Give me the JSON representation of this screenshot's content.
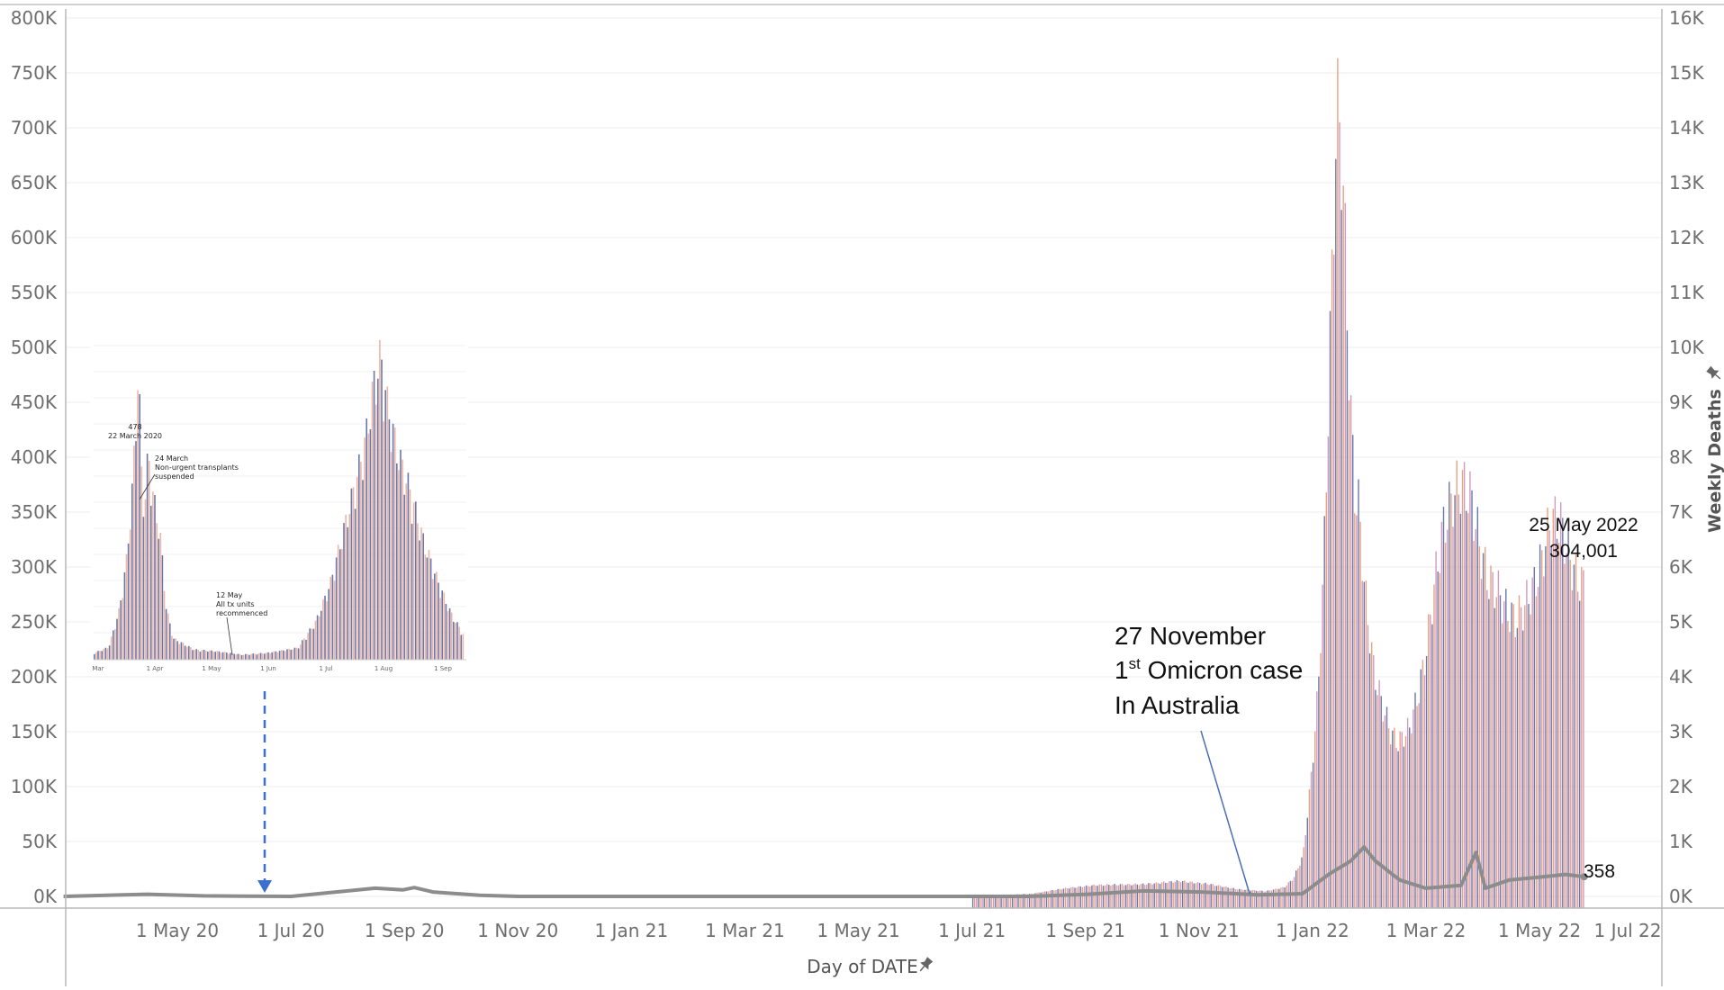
{
  "chart_data": {
    "type": "bar",
    "x_axis": {
      "title": "Day of DATE",
      "ticks": [
        "1 May 20",
        "1 Jul 20",
        "1 Sep 20",
        "1 Nov 20",
        "1 Jan 21",
        "1 Mar 21",
        "1 May 21",
        "1 Jul 21",
        "1 Sep 21",
        "1 Nov 21",
        "1 Jan 22",
        "1 Mar 22",
        "1 May 22",
        "1 Jul 22"
      ]
    },
    "y_left": {
      "range": [
        0,
        800000
      ],
      "ticks": [
        "800K",
        "750K",
        "700K",
        "650K",
        "600K",
        "550K",
        "500K",
        "450K",
        "400K",
        "350K",
        "300K",
        "250K",
        "200K",
        "150K",
        "100K",
        "50K",
        "0K"
      ]
    },
    "y_right": {
      "title": "Weekly Deaths",
      "range": [
        0,
        16000
      ],
      "ticks": [
        "16K",
        "15K",
        "14K",
        "13K",
        "12K",
        "11K",
        "10K",
        "9K",
        "8K",
        "7K",
        "6K",
        "5K",
        "4K",
        "3K",
        "2K",
        "1K",
        "0K"
      ]
    },
    "bars_series": {
      "axis": "left",
      "points": [
        [
          "2021-07-01",
          500
        ],
        [
          "2021-08-01",
          2500
        ],
        [
          "2021-08-20",
          8000
        ],
        [
          "2021-09-05",
          11000
        ],
        [
          "2021-10-01",
          12000
        ],
        [
          "2021-10-20",
          15000
        ],
        [
          "2021-11-05",
          12000
        ],
        [
          "2021-11-20",
          7000
        ],
        [
          "2021-12-05",
          5000
        ],
        [
          "2021-12-15",
          9000
        ],
        [
          "2021-12-20",
          18000
        ],
        [
          "2021-12-25",
          40000
        ],
        [
          "2021-12-29",
          110000
        ],
        [
          "2022-01-02",
          200000
        ],
        [
          "2022-01-05",
          320000
        ],
        [
          "2022-01-08",
          510000
        ],
        [
          "2022-01-10",
          640000
        ],
        [
          "2022-01-12",
          770000
        ],
        [
          "2022-01-14",
          750000
        ],
        [
          "2022-01-16",
          670000
        ],
        [
          "2022-01-18",
          550000
        ],
        [
          "2022-01-20",
          450000
        ],
        [
          "2022-01-22",
          390000
        ],
        [
          "2022-01-24",
          380000
        ],
        [
          "2022-01-27",
          300000
        ],
        [
          "2022-02-01",
          220000
        ],
        [
          "2022-02-05",
          190000
        ],
        [
          "2022-02-10",
          160000
        ],
        [
          "2022-02-14",
          150000
        ],
        [
          "2022-02-20",
          165000
        ],
        [
          "2022-02-25",
          200000
        ],
        [
          "2022-03-01",
          240000
        ],
        [
          "2022-03-05",
          300000
        ],
        [
          "2022-03-10",
          360000
        ],
        [
          "2022-03-15",
          390000
        ],
        [
          "2022-03-20",
          405000
        ],
        [
          "2022-03-25",
          390000
        ],
        [
          "2022-03-30",
          340000
        ],
        [
          "2022-04-03",
          310000
        ],
        [
          "2022-04-08",
          300000
        ],
        [
          "2022-04-13",
          280000
        ],
        [
          "2022-04-18",
          270000
        ],
        [
          "2022-04-23",
          285000
        ],
        [
          "2022-04-28",
          305000
        ],
        [
          "2022-05-02",
          330000
        ],
        [
          "2022-05-07",
          370000
        ],
        [
          "2022-05-12",
          365000
        ],
        [
          "2022-05-17",
          330000
        ],
        [
          "2022-05-21",
          310000
        ],
        [
          "2022-05-25",
          304001
        ]
      ]
    },
    "line_series": {
      "name": "Weekly Deaths",
      "axis": "right",
      "points": [
        [
          "2020-03-01",
          0
        ],
        [
          "2020-04-15",
          40
        ],
        [
          "2020-05-15",
          10
        ],
        [
          "2020-07-01",
          0
        ],
        [
          "2020-07-25",
          80
        ],
        [
          "2020-08-15",
          150
        ],
        [
          "2020-08-30",
          120
        ],
        [
          "2020-09-05",
          160
        ],
        [
          "2020-09-15",
          80
        ],
        [
          "2020-10-10",
          20
        ],
        [
          "2020-10-31",
          0
        ],
        [
          "2021-08-01",
          0
        ],
        [
          "2021-09-01",
          40
        ],
        [
          "2021-10-01",
          100
        ],
        [
          "2021-11-01",
          80
        ],
        [
          "2021-12-01",
          30
        ],
        [
          "2021-12-25",
          50
        ],
        [
          "2022-01-08",
          400
        ],
        [
          "2022-01-20",
          650
        ],
        [
          "2022-01-27",
          900
        ],
        [
          "2022-02-02",
          650
        ],
        [
          "2022-02-15",
          300
        ],
        [
          "2022-03-01",
          150
        ],
        [
          "2022-03-20",
          200
        ],
        [
          "2022-03-28",
          800
        ],
        [
          "2022-04-02",
          150
        ],
        [
          "2022-04-15",
          300
        ],
        [
          "2022-05-01",
          350
        ],
        [
          "2022-05-15",
          400
        ],
        [
          "2022-05-25",
          358
        ]
      ]
    },
    "annotations": {
      "omicron_line1": "27 November",
      "omicron_line2_main": "1",
      "omicron_line2_sup": "st",
      "omicron_line2_rest": " Omicron case",
      "omicron_line3": "In Australia",
      "peak_date": "25 May 2022",
      "peak_value": "304,001",
      "deaths_value": "358"
    },
    "inset": {
      "ticks": [
        "Mar",
        "1 Apr",
        "1 May",
        "1 Jun",
        "1 Jul",
        "1 Aug",
        "1 Sep"
      ],
      "label_478": "478",
      "label_22march": "22 March 2020",
      "note1_l1": "24 March",
      "note1_l2": "Non-urgent transplants",
      "note1_l3": "suspended",
      "note2_l1": "12 May",
      "note2_l2": "All tx units",
      "note2_l3": "recommenced"
    },
    "colors": {
      "grid": "#ececec",
      "axis": "#b8b8b8",
      "deaths_line": "#8c8c8c",
      "bar_palette": [
        "#6b77a8",
        "#8e84b5",
        "#b491c0",
        "#cf9bbf",
        "#e4a6b4",
        "#ecb6a6",
        "#f0c39a",
        "#e8a37f",
        "#df8563",
        "#cf6657",
        "#b84355"
      ],
      "arrow": "#3d6fcf"
    }
  }
}
